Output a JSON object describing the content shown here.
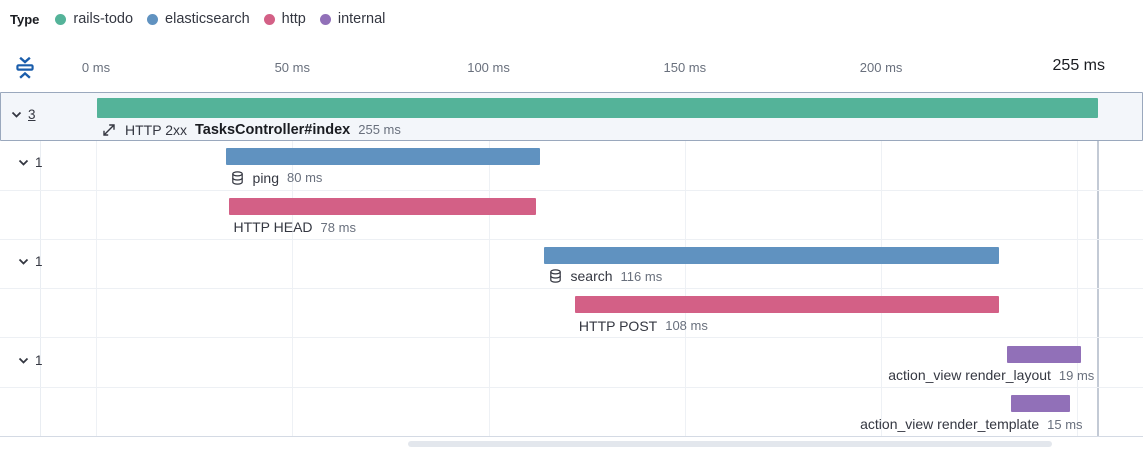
{
  "legend": {
    "title": "Type",
    "items": [
      {
        "label": "rails-todo",
        "color": "#54B399"
      },
      {
        "label": "elasticsearch",
        "color": "#6092C0"
      },
      {
        "label": "http",
        "color": "#D36086"
      },
      {
        "label": "internal",
        "color": "#9170B8"
      }
    ]
  },
  "axis": {
    "ticks": [
      {
        "ms": 0,
        "label": "0 ms"
      },
      {
        "ms": 50,
        "label": "50 ms"
      },
      {
        "ms": 100,
        "label": "100 ms"
      },
      {
        "ms": 150,
        "label": "150 ms"
      },
      {
        "ms": 200,
        "label": "200 ms"
      }
    ],
    "end_label": "255 ms"
  },
  "icons": {
    "fold": "fold-timeline-icon",
    "merge": "transaction-merge-icon",
    "database": "database-icon"
  },
  "chart_data": {
    "type": "waterfall",
    "unit": "ms",
    "xlim": [
      0,
      255
    ],
    "gridlines_ms": [
      0,
      50,
      100,
      150,
      200,
      250
    ],
    "trace_end_ms": 255,
    "rows": [
      {
        "kind": "transaction",
        "service": "rails-todo",
        "color": "#54B399",
        "count": "3",
        "count_underlined": true,
        "selected": true,
        "icon": "merge",
        "prefix": "HTTP 2xx",
        "name": "TasksController#index",
        "name_bold": true,
        "duration_label": "255 ms",
        "start_ms": 0,
        "duration_ms": 255,
        "label_align": "left"
      },
      {
        "kind": "span",
        "service": "elasticsearch",
        "color": "#6092C0",
        "count": "1",
        "icon": "database",
        "name": "ping",
        "duration_label": "80 ms",
        "start_ms": 33,
        "duration_ms": 80,
        "label_align": "left"
      },
      {
        "kind": "span",
        "service": "http",
        "color": "#D36086",
        "name": "HTTP HEAD",
        "duration_label": "78 ms",
        "start_ms": 34,
        "duration_ms": 78,
        "label_align": "left"
      },
      {
        "kind": "span",
        "service": "elasticsearch",
        "color": "#6092C0",
        "count": "1",
        "icon": "database",
        "name": "search",
        "duration_label": "116 ms",
        "start_ms": 114,
        "duration_ms": 116,
        "label_align": "left"
      },
      {
        "kind": "span",
        "service": "http",
        "color": "#D36086",
        "name": "HTTP POST",
        "duration_label": "108 ms",
        "start_ms": 122,
        "duration_ms": 108,
        "label_align": "left"
      },
      {
        "kind": "span",
        "service": "internal",
        "color": "#9170B8",
        "count": "1",
        "name": "action_view render_layout",
        "duration_label": "19 ms",
        "start_ms": 232,
        "duration_ms": 19,
        "label_align": "right"
      },
      {
        "kind": "span",
        "service": "internal",
        "color": "#9170B8",
        "name": "action_view render_template",
        "duration_label": "15 ms",
        "start_ms": 233,
        "duration_ms": 15,
        "label_align": "right"
      }
    ]
  }
}
